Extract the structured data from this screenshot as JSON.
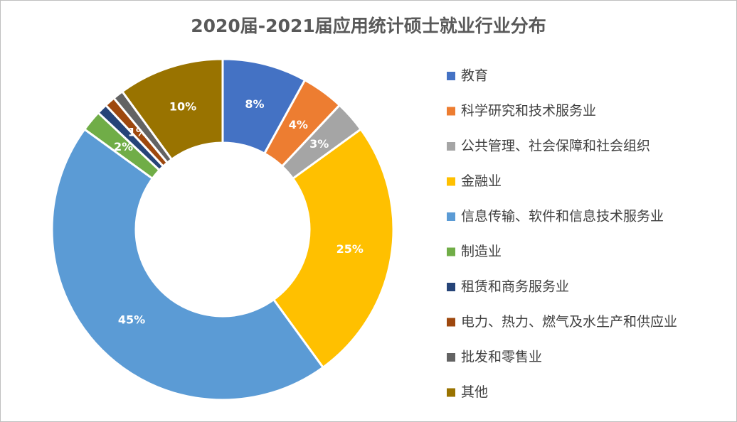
{
  "chart_data": {
    "type": "donut",
    "title": "2020届-2021届应用统计硕士就业行业分布",
    "categories": [
      "教育",
      "科学研究和技术服务业",
      "公共管理、社会保障和社会组织",
      "金融业",
      "信息传输、软件和信息技术服务业",
      "制造业",
      "租赁和商务服务业",
      "电力、热力、燃气及水生产和供应业",
      "批发和零售业",
      "其他"
    ],
    "values": [
      8,
      4,
      3,
      25,
      45,
      2,
      1,
      1,
      1,
      10
    ],
    "value_labels": [
      "8%",
      "4%",
      "3%",
      "25%",
      "45%",
      "2%",
      null,
      "1%",
      null,
      "10%"
    ],
    "colors": [
      "#4472c4",
      "#ed7d31",
      "#a5a5a5",
      "#ffc000",
      "#5b9bd5",
      "#70ad47",
      "#264478",
      "#9e480e",
      "#636363",
      "#997300"
    ],
    "legend": "right"
  }
}
